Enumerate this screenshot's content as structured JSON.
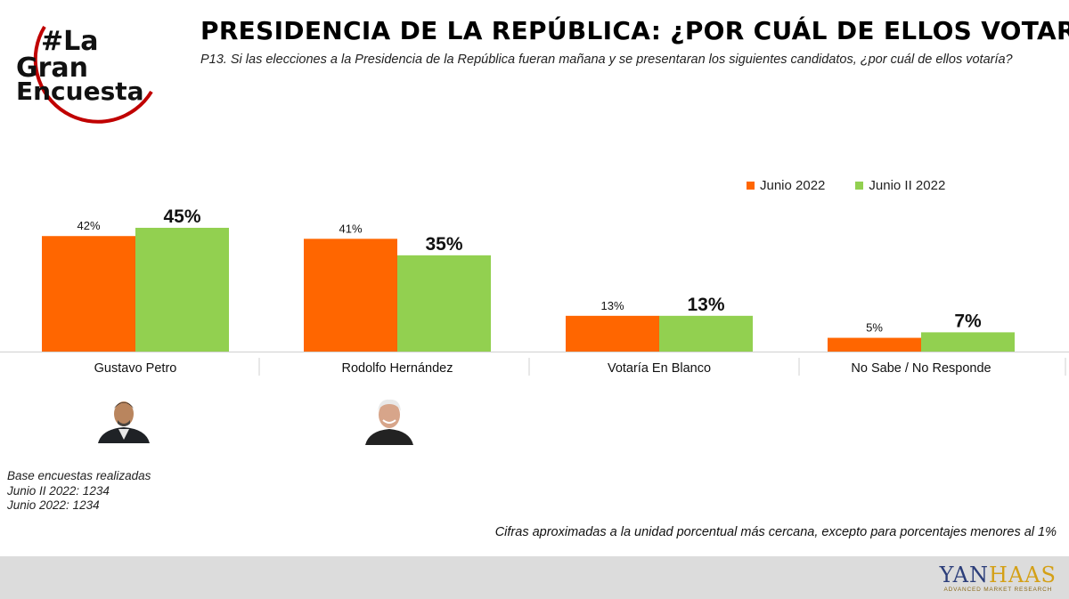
{
  "logo": {
    "line1": "#La",
    "line2": "Gran",
    "line3": "Encuesta"
  },
  "title": "PRESIDENCIA DE LA REPÚBLICA: ¿POR CUÁL DE ELLOS VOTARÍA?",
  "subtitle": "P13. Si las elecciones a la Presidencia de la República fueran mañana y se presentaran los siguientes candidatos, ¿por cuál de ellos votaría?",
  "colors": {
    "junio": "#ff6600",
    "junio_ii": "#92d050",
    "logo_red": "#c00000"
  },
  "chart_data": {
    "type": "bar",
    "categories": [
      "Gustavo Petro",
      "Rodolfo Hernández",
      "Votaría En Blanco",
      "No Sabe / No Responde"
    ],
    "series": [
      {
        "name": "Junio 2022",
        "values": [
          42,
          41,
          13,
          5
        ],
        "labels": [
          "42%",
          "41%",
          "13%",
          "5%"
        ]
      },
      {
        "name": "Junio II 2022",
        "values": [
          45,
          35,
          13,
          7
        ],
        "labels": [
          "45%",
          "35%",
          "13%",
          "7%"
        ]
      }
    ],
    "ylim": [
      0,
      50
    ],
    "legend_position": "top-right",
    "grid": false
  },
  "photos": [
    "gustavo-petro-photo",
    "rodolfo-hernandez-photo"
  ],
  "base": {
    "line1": "Base encuestas realizadas",
    "line2": "Junio II 2022: 1234",
    "line3": "Junio 2022: 1234"
  },
  "note": "Cifras aproximadas a la unidad porcentual más cercana, excepto para porcentajes menores al 1%",
  "brand": {
    "name_left": "YAN",
    "name_right": "HAAS",
    "tagline": "ADVANCED MARKET RESEARCH"
  }
}
